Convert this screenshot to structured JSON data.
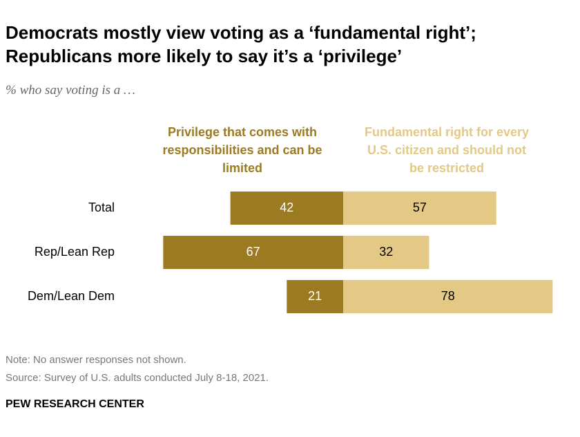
{
  "chart_data": {
    "type": "diverging_bar",
    "title": [
      "Democrats mostly view voting as a ‘fundamental right’;",
      "Republicans more likely to say it’s a ‘privilege’"
    ],
    "subtitle": "% who say voting is a …",
    "categories": [
      "Total",
      "Rep/Lean Rep",
      "Dem/Lean Dem"
    ],
    "series": [
      {
        "name": "Privilege that comes with responsibilities and can be limited",
        "color": "#9b7a22",
        "values": [
          42,
          67,
          21
        ]
      },
      {
        "name": "Fundamental right for every U.S. citizen and should not be restricted",
        "color": "#e3c985",
        "values": [
          57,
          32,
          78
        ]
      }
    ],
    "note": "Note: No answer responses not shown.",
    "source": "Source: Survey of U.S. adults conducted July 8-18, 2021.",
    "credit": "PEW RESEARCH CENTER"
  }
}
